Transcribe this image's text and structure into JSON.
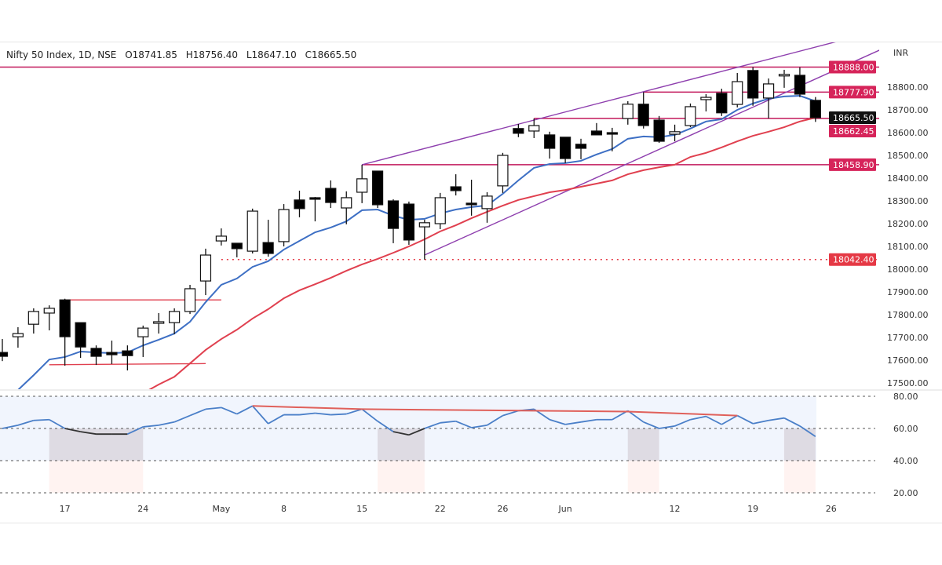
{
  "header": {
    "symbol": "Nifty 50 Index, 1D, NSE",
    "open": "O18741.85",
    "high": "H18756.40",
    "low": "L18647.10",
    "close": "C18665.50"
  },
  "colors": {
    "bull_body": "#ffffff",
    "bear_body": "#000000",
    "fast_ma": "#3d6fc4",
    "slow_ma": "#e0404f",
    "level_line": "#c2185b",
    "channel": "#8e3fae",
    "rsi": "#4a7fc8",
    "rsi_divergence": "#e0605a"
  },
  "chart_data": [
    {
      "type": "candlestick",
      "title": "Nifty 50 Index, 1D, NSE",
      "currency": "INR",
      "ylim": [
        17450,
        18990
      ],
      "y_ticks": [
        "17500.00",
        "17600.00",
        "17700.00",
        "17800.00",
        "17900.00",
        "18000.00",
        "18100.00",
        "18200.00",
        "18300.00",
        "18400.00",
        "18500.00",
        "18600.00",
        "18700.00",
        "18800.00"
      ],
      "x_tick_labels": [
        {
          "index": 4,
          "label": "17"
        },
        {
          "index": 9,
          "label": "24"
        },
        {
          "index": 14,
          "label": "May"
        },
        {
          "index": 18,
          "label": "8"
        },
        {
          "index": 23,
          "label": "15"
        },
        {
          "index": 28,
          "label": "22"
        },
        {
          "index": 32,
          "label": "26"
        },
        {
          "index": 36,
          "label": "Jun"
        },
        {
          "index": 43,
          "label": "12"
        },
        {
          "index": 48,
          "label": "19"
        },
        {
          "index": 53,
          "label": "26"
        }
      ],
      "ohlc": [
        [
          17634,
          17693,
          17596,
          17617
        ],
        [
          17703,
          17745,
          17655,
          17717
        ],
        [
          17758,
          17828,
          17717,
          17814
        ],
        [
          17807,
          17841,
          17731,
          17828
        ],
        [
          17865,
          17870,
          17576,
          17703
        ],
        [
          17765,
          17765,
          17610,
          17658
        ],
        [
          17652,
          17665,
          17579,
          17617
        ],
        [
          17634,
          17686,
          17583,
          17624
        ],
        [
          17641,
          17665,
          17555,
          17620
        ],
        [
          17703,
          17752,
          17614,
          17741
        ],
        [
          17762,
          17807,
          17717,
          17769
        ],
        [
          17765,
          17828,
          17714,
          17814
        ],
        [
          17814,
          17931,
          17803,
          17914
        ],
        [
          17948,
          18090,
          17886,
          18062
        ],
        [
          18124,
          18179,
          18104,
          18145
        ],
        [
          18114,
          18114,
          18052,
          18090
        ],
        [
          18079,
          18266,
          18069,
          18255
        ],
        [
          18117,
          18217,
          18055,
          18069
        ],
        [
          18121,
          18286,
          18100,
          18262
        ],
        [
          18304,
          18345,
          18228,
          18266
        ],
        [
          18314,
          18317,
          18210,
          18310
        ],
        [
          18355,
          18390,
          18269,
          18293
        ],
        [
          18269,
          18342,
          18197,
          18314
        ],
        [
          18338,
          18459,
          18290,
          18397
        ],
        [
          18431,
          18431,
          18269,
          18283
        ],
        [
          18300,
          18307,
          18114,
          18179
        ],
        [
          18286,
          18297,
          18107,
          18128
        ],
        [
          18186,
          18217,
          18042,
          18204
        ],
        [
          18200,
          18335,
          18176,
          18314
        ],
        [
          18362,
          18417,
          18324,
          18345
        ],
        [
          18290,
          18393,
          18235,
          18283
        ],
        [
          18266,
          18338,
          18204,
          18321
        ],
        [
          18366,
          18511,
          18335,
          18500
        ],
        [
          18618,
          18638,
          18580,
          18597
        ],
        [
          18607,
          18662,
          18576,
          18631
        ],
        [
          18590,
          18604,
          18486,
          18531
        ],
        [
          18580,
          18580,
          18466,
          18486
        ],
        [
          18549,
          18573,
          18483,
          18531
        ],
        [
          18607,
          18642,
          18590,
          18590
        ],
        [
          18600,
          18621,
          18518,
          18598
        ],
        [
          18662,
          18738,
          18635,
          18725
        ],
        [
          18725,
          18778,
          18618,
          18631
        ],
        [
          18655,
          18673,
          18555,
          18562
        ],
        [
          18593,
          18635,
          18562,
          18604
        ],
        [
          18631,
          18728,
          18624,
          18714
        ],
        [
          18745,
          18769,
          18693,
          18755
        ],
        [
          18773,
          18793,
          18673,
          18687
        ],
        [
          18724,
          18862,
          18711,
          18824
        ],
        [
          18873,
          18888,
          18718,
          18752
        ],
        [
          18752,
          18838,
          18662,
          18814
        ],
        [
          18849,
          18876,
          18797,
          18856
        ],
        [
          18852,
          18887,
          18756,
          18769
        ],
        [
          18741.85,
          18756.4,
          18647.1,
          18665.5
        ]
      ],
      "moving_averages": {
        "fast": [
          17424,
          17469,
          17534,
          17603,
          17614,
          17638,
          17634,
          17631,
          17634,
          17665,
          17690,
          17717,
          17769,
          17855,
          17931,
          17959,
          18010,
          18035,
          18086,
          18124,
          18162,
          18183,
          18210,
          18259,
          18262,
          18235,
          18217,
          18221,
          18245,
          18262,
          18273,
          18280,
          18331,
          18390,
          18445,
          18462,
          18466,
          18476,
          18504,
          18528,
          18573,
          18583,
          18580,
          18590,
          18618,
          18649,
          18659,
          18700,
          18728,
          18749,
          18759,
          18762,
          18738
        ],
        "slow": [
          null,
          null,
          null,
          null,
          null,
          null,
          null,
          null,
          null,
          17455,
          17493,
          17527,
          17586,
          17645,
          17693,
          17734,
          17783,
          17824,
          17872,
          17907,
          17934,
          17962,
          17993,
          18021,
          18045,
          18072,
          18100,
          18131,
          18166,
          18193,
          18224,
          18252,
          18279,
          18304,
          18321,
          18338,
          18348,
          18362,
          18376,
          18390,
          18417,
          18435,
          18448,
          18459,
          18493,
          18511,
          18535,
          18562,
          18586,
          18604,
          18624,
          18649,
          18666
        ]
      },
      "price_labels": [
        {
          "value": 18888.0,
          "label": "18888.00",
          "color": "#d6245a",
          "from_index": -1
        },
        {
          "value": 18777.9,
          "label": "18777.90",
          "color": "#d6245a",
          "from_index": 41
        },
        {
          "value": 18665.5,
          "label": "18665.50",
          "color": "#111111",
          "from_index": null
        },
        {
          "value": 18662.45,
          "label": "18662.45",
          "color": "#d6245a",
          "from_index": 34
        },
        {
          "value": 18458.9,
          "label": "18458.90",
          "color": "#d6245a",
          "from_index": 23
        },
        {
          "value": 18042.4,
          "label": "18042.40",
          "color": "#e53945",
          "from_index": 14,
          "dotted": true
        }
      ],
      "trendlines": [
        {
          "from": [
            23,
            18459
          ],
          "to": [
            53.3,
            18999
          ],
          "color": "#8e3fae"
        },
        {
          "from": [
            27,
            18062
          ],
          "to": [
            56.5,
            18975
          ],
          "color": "#8e3fae"
        },
        {
          "from": [
            4,
            17865
          ],
          "to": [
            14,
            17865
          ],
          "color": "#e0404f"
        },
        {
          "from": [
            3,
            17580
          ],
          "to": [
            13,
            17585
          ],
          "color": "#e0404f"
        }
      ]
    },
    {
      "type": "line",
      "ylim": [
        14,
        86
      ],
      "y_ticks": [
        "80.00",
        "60.00",
        "40.00",
        "20.00"
      ],
      "band": [
        40,
        80
      ],
      "values": [
        60,
        62,
        65,
        65.5,
        60,
        58,
        56.5,
        56.5,
        56.5,
        61,
        62,
        64,
        68,
        72,
        73,
        69,
        74,
        63,
        68.5,
        68.5,
        69.5,
        68.5,
        69,
        72,
        64.5,
        58,
        56,
        60,
        63.5,
        64.5,
        60.5,
        62,
        68,
        71,
        72,
        65.5,
        62.5,
        64,
        65.5,
        65.5,
        71,
        64,
        60,
        61.5,
        65.5,
        67.5,
        62.5,
        68,
        63,
        65,
        66.5,
        61.5,
        55
      ],
      "divergence_line": [
        [
          16,
          74
        ],
        [
          23,
          72
        ],
        [
          40,
          70.5
        ],
        [
          47,
          68
        ]
      ]
    }
  ]
}
